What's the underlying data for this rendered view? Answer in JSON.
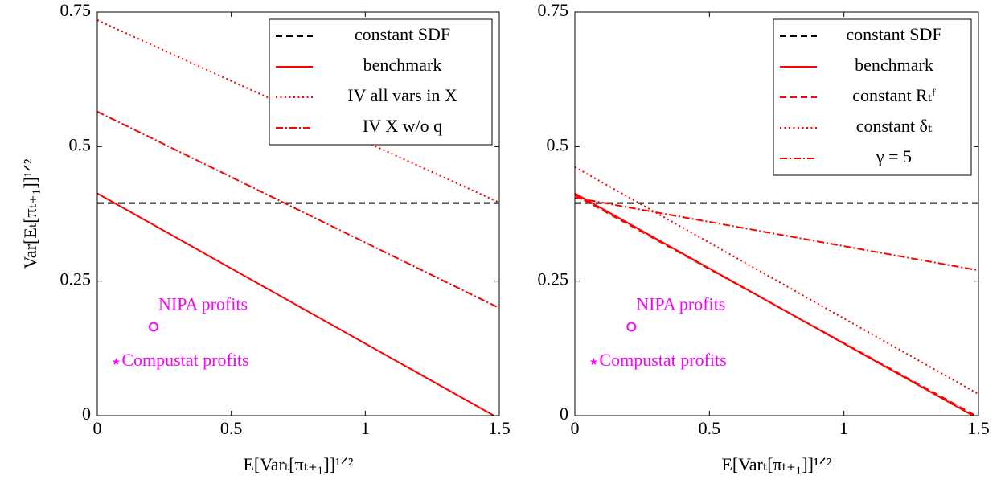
{
  "chart_data": [
    {
      "type": "line",
      "xlabel": "E[Varₜ[πₜ₊₁]]¹ᐟ²",
      "ylabel": "Var[Eₜ[πₜ₊₁]]¹ᐟ²",
      "xlim": [
        0,
        1.5
      ],
      "ylim": [
        0,
        0.75
      ],
      "xticks": [
        0,
        0.5,
        1,
        1.5
      ],
      "yticks": [
        0,
        0.25,
        0.5,
        0.75
      ],
      "legend": "upper right",
      "series": [
        {
          "name": "constant SDF",
          "color": "#000000",
          "style": "dashed",
          "x": [
            0,
            1.5
          ],
          "values": [
            0.395,
            0.395
          ]
        },
        {
          "name": "benchmark",
          "color": "#ff0000",
          "style": "solid",
          "x": [
            0,
            1.48
          ],
          "values": [
            0.413,
            0
          ]
        },
        {
          "name": "IV all vars in X",
          "color": "#ff0000",
          "style": "dotted",
          "x": [
            0,
            1.5
          ],
          "values": [
            0.735,
            0.396
          ]
        },
        {
          "name": "IV X w/o q",
          "color": "#ff0000",
          "style": "dashdot",
          "x": [
            0,
            1.5
          ],
          "values": [
            0.565,
            0.2
          ]
        }
      ],
      "annotations": [
        {
          "text": "NIPA profits",
          "marker": "circle",
          "color": "#ff00ff",
          "x": 0.21,
          "y": 0.165
        },
        {
          "text": "Compustat profits",
          "marker": "star",
          "color": "#ff00ff",
          "x": 0.07,
          "y": 0.1
        }
      ]
    },
    {
      "type": "line",
      "xlabel": "E[Varₜ[πₜ₊₁]]¹ᐟ²",
      "xlim": [
        0,
        1.5
      ],
      "ylim": [
        0,
        0.75
      ],
      "xticks": [
        0,
        0.5,
        1,
        1.5
      ],
      "yticks": [
        0,
        0.25,
        0.5,
        0.75
      ],
      "legend": "upper right",
      "series": [
        {
          "name": "constant SDF",
          "color": "#000000",
          "style": "dashed",
          "x": [
            0,
            1.5
          ],
          "values": [
            0.395,
            0.395
          ]
        },
        {
          "name": "benchmark",
          "color": "#ff0000",
          "style": "solid",
          "x": [
            0,
            1.48
          ],
          "values": [
            0.413,
            0
          ]
        },
        {
          "name": "constant Rₜᶠ",
          "color": "#ff0000",
          "style": "dashed",
          "x": [
            0,
            1.49
          ],
          "values": [
            0.41,
            0
          ]
        },
        {
          "name": "constant δₜ",
          "color": "#ff0000",
          "style": "dotted",
          "x": [
            0,
            1.5
          ],
          "values": [
            0.462,
            0.04
          ]
        },
        {
          "name": "γ = 5",
          "color": "#ff0000",
          "style": "dashdot",
          "x": [
            0,
            1.5
          ],
          "values": [
            0.405,
            0.27
          ]
        }
      ],
      "annotations": [
        {
          "text": "NIPA profits",
          "marker": "circle",
          "color": "#ff00ff",
          "x": 0.21,
          "y": 0.165
        },
        {
          "text": "Compustat profits",
          "marker": "star",
          "color": "#ff00ff",
          "x": 0.07,
          "y": 0.1
        }
      ]
    }
  ]
}
